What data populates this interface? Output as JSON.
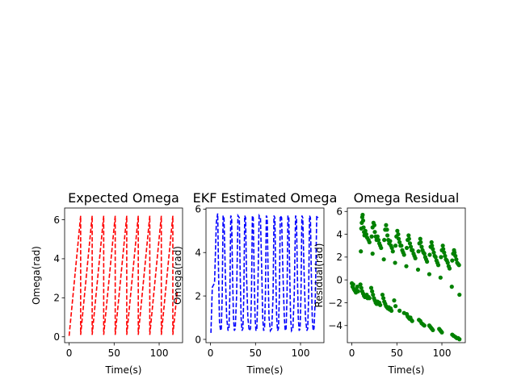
{
  "colors": {
    "background": "#ffffff",
    "axes": "#000000"
  },
  "chart_data": [
    {
      "type": "line",
      "title": "Expected Omega",
      "xlabel": "Time(s)",
      "ylabel": "Omega(rad)",
      "xlim": [
        -5,
        126
      ],
      "ylim": [
        -0.3,
        6.6
      ],
      "xticks": [
        0,
        50,
        100
      ],
      "yticks": [
        0,
        2,
        4,
        6
      ],
      "grid": false,
      "legend": "none",
      "series": [
        {
          "style": "dashed",
          "color": "#ff0000",
          "x": [
            0.0,
            12.8,
            12.8,
            25.6,
            25.6,
            38.4,
            38.4,
            51.2,
            51.2,
            64.0,
            64.0,
            76.8,
            76.8,
            89.6,
            89.6,
            102.4,
            102.4,
            115.2,
            115.2,
            120.0
          ],
          "y": [
            0.05,
            6.2,
            0.1,
            6.2,
            0.1,
            6.2,
            0.1,
            6.2,
            0.1,
            6.2,
            0.1,
            6.2,
            0.1,
            6.2,
            0.1,
            6.2,
            0.1,
            6.2,
            0.1,
            2.3
          ]
        }
      ]
    },
    {
      "type": "line",
      "title": "EKF Estimated Omega",
      "xlabel": "Time(s)",
      "ylabel": "Omega(rad)",
      "xlim": [
        -5,
        126
      ],
      "ylim": [
        -0.15,
        6.05
      ],
      "xticks": [
        0,
        50,
        100
      ],
      "yticks": [
        0,
        2,
        4,
        6
      ],
      "grid": false,
      "legend": "none",
      "series": [
        {
          "style": "dashed",
          "color": "#0000ff",
          "x": [
            0.5,
            2.0,
            4.5,
            6.5,
            8.0,
            9.0,
            10.0,
            11.2,
            12.0,
            13.0,
            14.0,
            15.0,
            16.5,
            18.0,
            19.5,
            20.5,
            21.5,
            22.5,
            23.5,
            24.5,
            25.5,
            26.5,
            27.5,
            29.0,
            30.5,
            32.0,
            33.0,
            34.0,
            35.0,
            36.0,
            37.0,
            38.0,
            39.0,
            40.0,
            41.5,
            43.0,
            44.5,
            45.5,
            46.5,
            47.5,
            48.5,
            49.5,
            50.5,
            51.5,
            52.5,
            54.0,
            55.5,
            57.0,
            58.0,
            59.0,
            60.0,
            61.0,
            62.0,
            63.0,
            64.0,
            65.0,
            66.5,
            68.0,
            69.5,
            70.5,
            71.5,
            72.5,
            73.5,
            74.5,
            75.5,
            76.5,
            77.5,
            79.0,
            80.5,
            82.0,
            83.0,
            84.0,
            85.0,
            86.0,
            87.0,
            88.0,
            89.0,
            90.0,
            91.5,
            93.0,
            94.5,
            95.5,
            96.5,
            97.5,
            98.5,
            99.5,
            100.5,
            101.5,
            102.5,
            104.0,
            105.5,
            107.0,
            108.0,
            109.0,
            110.0,
            111.0,
            112.0,
            113.0,
            114.0,
            115.0,
            116.5,
            118.0,
            119.5
          ],
          "y": [
            0.3,
            2.4,
            2.6,
            5.4,
            5.8,
            3.0,
            0.8,
            0.4,
            0.5,
            2.0,
            5.7,
            5.6,
            3.0,
            1.0,
            0.4,
            0.5,
            2.0,
            5.7,
            5.6,
            3.0,
            1.0,
            0.4,
            0.5,
            2.0,
            5.7,
            5.6,
            3.0,
            1.0,
            0.4,
            0.5,
            2.0,
            5.7,
            5.6,
            3.0,
            1.0,
            0.4,
            0.5,
            2.0,
            5.7,
            5.6,
            3.0,
            1.0,
            0.4,
            0.5,
            2.0,
            5.7,
            5.6,
            3.0,
            1.0,
            0.4,
            0.5,
            2.0,
            5.7,
            5.6,
            3.0,
            1.0,
            0.4,
            0.5,
            2.0,
            5.7,
            5.6,
            3.0,
            1.0,
            0.4,
            0.5,
            2.0,
            5.7,
            5.6,
            3.0,
            1.0,
            0.4,
            0.5,
            2.0,
            5.7,
            5.6,
            3.0,
            1.0,
            0.4,
            0.5,
            2.0,
            5.7,
            5.6,
            3.0,
            1.0,
            0.4,
            0.5,
            2.0,
            5.7,
            5.6,
            3.0,
            1.0,
            0.4,
            0.5,
            2.0,
            5.7,
            5.6,
            3.0,
            1.0,
            0.4,
            0.5,
            2.0,
            5.7,
            5.6
          ]
        }
      ]
    },
    {
      "type": "scatter",
      "title": "Omega Residual",
      "xlabel": "Time(s)",
      "ylabel": "Residual(rad)",
      "xlim": [
        -5,
        126
      ],
      "ylim": [
        -5.5,
        6.3
      ],
      "xticks": [
        0,
        50,
        100
      ],
      "yticks": [
        -4,
        -2,
        0,
        2,
        4,
        6
      ],
      "ytick_labels": [
        "−4",
        "−2",
        "0",
        "2",
        "4",
        "6"
      ],
      "grid": false,
      "legend": "none",
      "series": [
        {
          "marker": "circle",
          "color": "#008000",
          "points": [
            [
              10.5,
              4.5
            ],
            [
              11.0,
              5.0
            ],
            [
              11.5,
              5.5
            ],
            [
              12.0,
              5.7
            ],
            [
              12.5,
              5.2
            ],
            [
              13.0,
              4.6
            ],
            [
              13.5,
              4.2
            ],
            [
              14.0,
              3.9
            ],
            [
              15.0,
              4.3
            ],
            [
              16.0,
              4.0
            ],
            [
              17.0,
              3.7
            ],
            [
              18.5,
              3.5
            ],
            [
              19.5,
              3.3
            ],
            [
              22.0,
              3.8
            ],
            [
              23.0,
              4.6
            ],
            [
              24.0,
              5.0
            ],
            [
              25.0,
              4.8
            ],
            [
              25.5,
              4.2
            ],
            [
              26.5,
              3.8
            ],
            [
              27.5,
              3.5
            ],
            [
              28.5,
              3.8
            ],
            [
              29.5,
              3.5
            ],
            [
              30.5,
              3.2
            ],
            [
              31.5,
              3.0
            ],
            [
              32.5,
              2.8
            ],
            [
              36.0,
              3.5
            ],
            [
              37.0,
              4.4
            ],
            [
              38.0,
              4.8
            ],
            [
              39.0,
              4.4
            ],
            [
              39.5,
              3.9
            ],
            [
              40.5,
              3.5
            ],
            [
              41.5,
              3.2
            ],
            [
              42.5,
              3.4
            ],
            [
              43.5,
              3.0
            ],
            [
              44.5,
              2.8
            ],
            [
              45.5,
              2.5
            ],
            [
              48.5,
              3.0
            ],
            [
              49.5,
              3.8
            ],
            [
              50.5,
              4.3
            ],
            [
              51.5,
              4.0
            ],
            [
              52.0,
              3.6
            ],
            [
              53.0,
              3.3
            ],
            [
              54.0,
              3.0
            ],
            [
              55.0,
              3.0
            ],
            [
              56.0,
              2.6
            ],
            [
              57.0,
              2.4
            ],
            [
              58.0,
              2.2
            ],
            [
              61.0,
              2.8
            ],
            [
              62.0,
              3.5
            ],
            [
              63.0,
              3.9
            ],
            [
              63.5,
              3.6
            ],
            [
              64.5,
              3.2
            ],
            [
              65.5,
              2.9
            ],
            [
              66.5,
              2.6
            ],
            [
              67.5,
              2.6
            ],
            [
              68.5,
              2.3
            ],
            [
              69.5,
              2.1
            ],
            [
              70.5,
              1.9
            ],
            [
              74.0,
              2.5
            ],
            [
              75.0,
              3.2
            ],
            [
              76.0,
              3.6
            ],
            [
              76.5,
              3.3
            ],
            [
              77.5,
              2.9
            ],
            [
              78.5,
              2.6
            ],
            [
              79.5,
              2.4
            ],
            [
              80.5,
              2.3
            ],
            [
              81.5,
              2.0
            ],
            [
              82.5,
              1.8
            ],
            [
              83.5,
              1.6
            ],
            [
              86.5,
              2.2
            ],
            [
              87.5,
              2.9
            ],
            [
              88.5,
              3.3
            ],
            [
              89.0,
              3.0
            ],
            [
              90.0,
              2.7
            ],
            [
              91.0,
              2.4
            ],
            [
              92.0,
              2.1
            ],
            [
              93.0,
              2.0
            ],
            [
              94.0,
              1.7
            ],
            [
              95.0,
              1.5
            ],
            [
              96.0,
              1.3
            ],
            [
              99.0,
              2.0
            ],
            [
              100.0,
              2.6
            ],
            [
              101.0,
              3.0
            ],
            [
              101.5,
              2.7
            ],
            [
              102.5,
              2.4
            ],
            [
              103.5,
              2.1
            ],
            [
              104.5,
              1.8
            ],
            [
              105.5,
              1.7
            ],
            [
              106.5,
              1.5
            ],
            [
              107.5,
              1.2
            ],
            [
              108.5,
              1.0
            ],
            [
              111.5,
              1.7
            ],
            [
              112.5,
              2.3
            ],
            [
              113.5,
              2.6
            ],
            [
              114.0,
              2.4
            ],
            [
              115.0,
              2.1
            ],
            [
              116.0,
              1.8
            ],
            [
              117.0,
              1.5
            ],
            [
              118.0,
              1.4
            ],
            [
              119.0,
              1.3
            ],
            [
              10.0,
              2.5
            ],
            [
              23.0,
              2.3
            ],
            [
              35.5,
              1.8
            ],
            [
              48.0,
              1.5
            ],
            [
              60.5,
              1.2
            ],
            [
              73.5,
              0.9
            ],
            [
              86.0,
              0.5
            ],
            [
              98.5,
              0.2
            ],
            [
              111.0,
              -0.6
            ],
            [
              119.5,
              -1.3
            ],
            [
              0.0,
              -0.3
            ],
            [
              0.8,
              -0.6
            ],
            [
              1.5,
              -0.4
            ],
            [
              2.2,
              -0.8
            ],
            [
              3.0,
              -0.9
            ],
            [
              3.8,
              -1.0
            ],
            [
              4.5,
              -1.1
            ],
            [
              5.2,
              -0.9
            ],
            [
              6.0,
              -0.6
            ],
            [
              7.0,
              -1.0
            ],
            [
              9.5,
              -0.4
            ],
            [
              10.5,
              -0.7
            ],
            [
              11.5,
              -1.0
            ],
            [
              12.5,
              -1.2
            ],
            [
              13.5,
              -1.4
            ],
            [
              14.5,
              -1.5
            ],
            [
              15.5,
              -1.5
            ],
            [
              16.5,
              -1.3
            ],
            [
              17.5,
              -1.6
            ],
            [
              18.5,
              -1.5
            ],
            [
              19.5,
              -1.6
            ],
            [
              21.5,
              -0.7
            ],
            [
              22.5,
              -1.0
            ],
            [
              23.5,
              -1.3
            ],
            [
              24.5,
              -1.6
            ],
            [
              25.5,
              -1.8
            ],
            [
              26.5,
              -2.0
            ],
            [
              27.5,
              -2.1
            ],
            [
              28.5,
              -1.9
            ],
            [
              29.5,
              -2.1
            ],
            [
              30.5,
              -2.0
            ],
            [
              31.5,
              -2.2
            ],
            [
              34.0,
              -1.3
            ],
            [
              35.0,
              -1.6
            ],
            [
              36.0,
              -1.9
            ],
            [
              37.0,
              -2.1
            ],
            [
              38.0,
              -2.3
            ],
            [
              39.0,
              -2.4
            ],
            [
              40.0,
              -2.5
            ],
            [
              41.0,
              -2.4
            ],
            [
              42.0,
              -2.6
            ],
            [
              43.0,
              -2.5
            ],
            [
              44.0,
              -2.7
            ],
            [
              47.0,
              -1.8
            ],
            [
              48.5,
              -2.3
            ],
            [
              53.0,
              -2.7
            ],
            [
              58.0,
              -2.9
            ],
            [
              61.0,
              -3.0
            ],
            [
              62.0,
              -3.2
            ],
            [
              63.0,
              -3.3
            ],
            [
              64.0,
              -3.4
            ],
            [
              65.0,
              -3.3
            ],
            [
              66.0,
              -3.5
            ],
            [
              67.0,
              -3.6
            ],
            [
              74.5,
              -3.5
            ],
            [
              76.0,
              -3.6
            ],
            [
              77.5,
              -3.8
            ],
            [
              79.0,
              -3.9
            ],
            [
              80.5,
              -4.0
            ],
            [
              86.0,
              -4.0
            ],
            [
              87.0,
              -4.1
            ],
            [
              88.0,
              -4.2
            ],
            [
              89.0,
              -4.3
            ],
            [
              90.0,
              -4.4
            ],
            [
              97.0,
              -4.3
            ],
            [
              98.0,
              -4.4
            ],
            [
              99.0,
              -4.5
            ],
            [
              100.0,
              -4.6
            ],
            [
              111.5,
              -4.8
            ],
            [
              113.0,
              -4.9
            ],
            [
              115.0,
              -5.0
            ],
            [
              116.5,
              -5.1
            ],
            [
              118.0,
              -5.1
            ],
            [
              119.5,
              -5.2
            ]
          ]
        }
      ]
    }
  ]
}
